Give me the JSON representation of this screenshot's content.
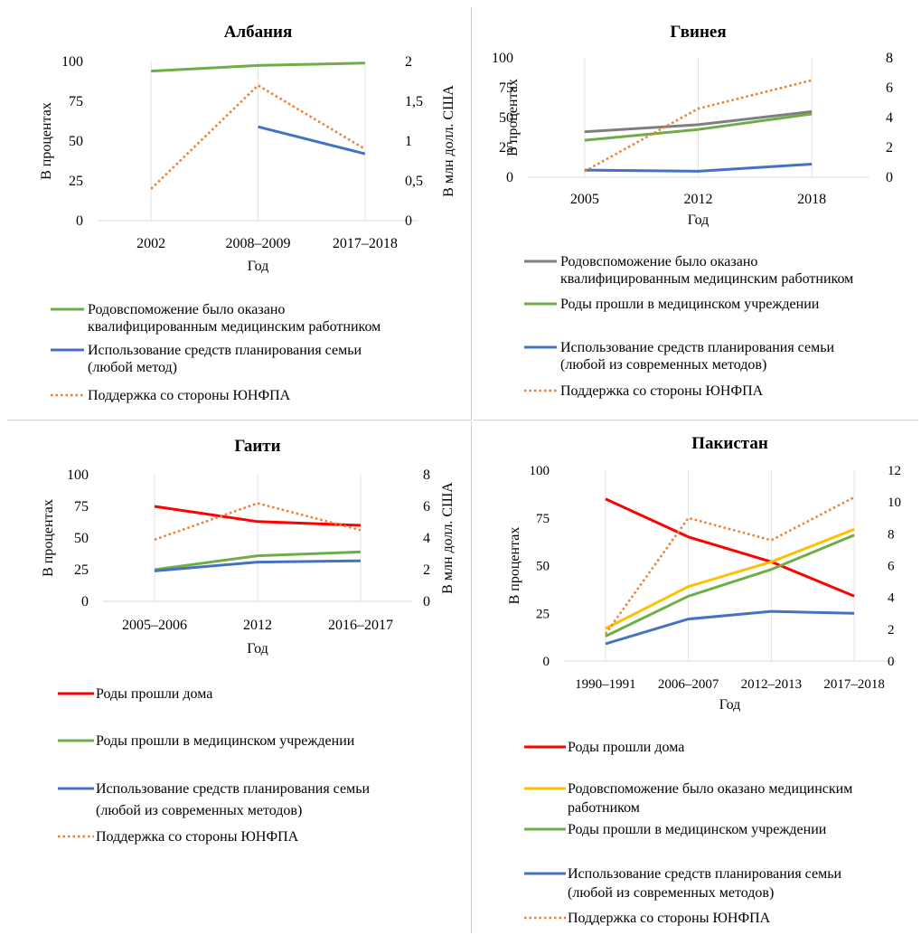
{
  "chart_data": [
    {
      "id": "albania",
      "type": "line",
      "title": "Албания",
      "xlabel": "Год",
      "ylabel": "В процентах",
      "y2label": "В млн долл. США",
      "categories": [
        "2002",
        "2008–2009",
        "2017–2018"
      ],
      "ylim": [
        0,
        100
      ],
      "yticks": [
        0,
        25,
        50,
        75,
        100
      ],
      "y2lim": [
        0,
        2
      ],
      "y2ticks": [
        "0",
        "0,5",
        "1",
        "1,5",
        "2"
      ],
      "series": [
        {
          "name": "Родовспоможение было оказано квалифицированным медицинским работником",
          "legend_lines": [
            "Родовспоможение было оказано",
            "квалифицированным медицинским работником"
          ],
          "color": "#70ad47",
          "dash": "solid",
          "axis": "left",
          "values": [
            94,
            97.5,
            99
          ]
        },
        {
          "name": "Использование средств планирования семьи (любой метод)",
          "legend_lines": [
            "Использование средств планирования семьи",
            "(любой метод)"
          ],
          "color": "#4472c4",
          "dash": "solid",
          "axis": "left",
          "values": [
            null,
            59,
            42
          ]
        },
        {
          "name": "Поддержка со стороны ЮНФПА",
          "legend_lines": [
            "Поддержка со стороны ЮНФПА"
          ],
          "color": "#ed7d31",
          "dash": "dotted",
          "axis": "right",
          "values": [
            0.4,
            1.7,
            0.9
          ]
        }
      ]
    },
    {
      "id": "guinea",
      "type": "line",
      "title": "Гвинея",
      "xlabel": "Год",
      "ylabel": "В процентах",
      "y2label": "",
      "categories": [
        "2005",
        "2012",
        "2018"
      ],
      "ylim": [
        0,
        100
      ],
      "yticks": [
        0,
        25,
        50,
        75,
        100
      ],
      "y2lim": [
        0,
        8
      ],
      "y2ticks": [
        "0",
        "2",
        "4",
        "6",
        "8"
      ],
      "series": [
        {
          "name": "Родовспоможение было оказано квалифицированным медицинским работником",
          "legend_lines": [
            "Родовспоможение было оказано",
            "квалифицированным медицинским работником"
          ],
          "color": "#7f7f7f",
          "dash": "solid",
          "axis": "left",
          "values": [
            38,
            44,
            55
          ]
        },
        {
          "name": "Роды прошли в медицинском учреждении",
          "legend_lines": [
            "Роды прошли в медицинском учреждении"
          ],
          "color": "#70ad47",
          "dash": "solid",
          "axis": "left",
          "values": [
            31,
            40,
            53
          ]
        },
        {
          "name": "Использование средств планирования семьи (любой из современных методов)",
          "legend_lines": [
            "Использование средств планирования семьи",
            "(любой из современных методов)"
          ],
          "color": "#4472c4",
          "dash": "solid",
          "axis": "left",
          "values": [
            6,
            5,
            11
          ]
        },
        {
          "name": "Поддержка со стороны ЮНФПА",
          "legend_lines": [
            "Поддержка со стороны ЮНФПА"
          ],
          "color": "#ed7d31",
          "dash": "dotted",
          "axis": "right",
          "values": [
            0.4,
            4.6,
            6.5
          ]
        }
      ]
    },
    {
      "id": "haiti",
      "type": "line",
      "title": "Гаити",
      "xlabel": "Год",
      "ylabel": "В процентах",
      "y2label": "В млн долл. США",
      "categories": [
        "2005–2006",
        "2012",
        "2016–2017"
      ],
      "ylim": [
        0,
        100
      ],
      "yticks": [
        0,
        25,
        50,
        75,
        100
      ],
      "y2lim": [
        0,
        8
      ],
      "y2ticks": [
        "0",
        "2",
        "4",
        "6",
        "8"
      ],
      "series": [
        {
          "name": "Роды прошли дома",
          "legend_lines": [
            "Роды прошли дома"
          ],
          "color": "#ff0000",
          "dash": "solid",
          "axis": "left",
          "values": [
            75,
            63,
            60
          ]
        },
        {
          "name": "Роды прошли в медицинском учреждении",
          "legend_lines": [
            "Роды прошли в медицинском учреждении"
          ],
          "color": "#70ad47",
          "dash": "solid",
          "axis": "left",
          "values": [
            25,
            36,
            39
          ]
        },
        {
          "name": "Использование средств планирования семьи (любой из современных методов)",
          "legend_lines": [
            "Использование средств планирования семьи",
            "(любой из современных методов)"
          ],
          "color": "#4472c4",
          "dash": "solid",
          "axis": "left",
          "values": [
            24,
            31,
            32
          ]
        },
        {
          "name": "Поддержка со стороны ЮНФПА",
          "legend_lines": [
            "Поддержка со стороны ЮНФПА"
          ],
          "color": "#ed7d31",
          "dash": "dotted",
          "axis": "right",
          "values": [
            3.9,
            6.2,
            4.5
          ]
        }
      ]
    },
    {
      "id": "pakistan",
      "type": "line",
      "title": "Пакистан",
      "xlabel": "Год",
      "ylabel": "В процентах",
      "y2label": "",
      "categories": [
        "1990–1991",
        "2006–2007",
        "2012–2013",
        "2017–2018"
      ],
      "ylim": [
        0,
        100
      ],
      "yticks": [
        0,
        25,
        50,
        75,
        100
      ],
      "y2lim": [
        0,
        12
      ],
      "y2ticks": [
        "0",
        "2",
        "4",
        "6",
        "8",
        "10",
        "12"
      ],
      "series": [
        {
          "name": "Роды прошли дома",
          "legend_lines": [
            "Роды прошли дома"
          ],
          "color": "#ff0000",
          "dash": "solid",
          "axis": "left",
          "values": [
            85,
            65,
            52,
            34
          ]
        },
        {
          "name": "Родовспоможение было оказано медицинским работником",
          "legend_lines": [
            "Родовспоможение было оказано медицинским",
            "работником"
          ],
          "color": "#ffc000",
          "dash": "solid",
          "axis": "left",
          "values": [
            17,
            39,
            52,
            69
          ]
        },
        {
          "name": "Роды прошли в медицинском учреждении",
          "legend_lines": [
            "Роды прошли в медицинском учреждении"
          ],
          "color": "#70ad47",
          "dash": "solid",
          "axis": "left",
          "values": [
            13,
            34,
            48,
            66
          ]
        },
        {
          "name": "Использование средств планирования семьи (любой из современных методов)",
          "legend_lines": [
            "Использование средств планирования семьи",
            "(любой из современных методов)"
          ],
          "color": "#4472c4",
          "dash": "solid",
          "axis": "left",
          "values": [
            9,
            22,
            26,
            25
          ]
        },
        {
          "name": "Поддержка со стороны ЮНФПА",
          "legend_lines": [
            "Поддержка со стороны ЮНФПА"
          ],
          "color": "#ed7d31",
          "dash": "dotted",
          "axis": "right",
          "values": [
            1.7,
            9.0,
            7.6,
            10.3
          ]
        }
      ]
    }
  ]
}
